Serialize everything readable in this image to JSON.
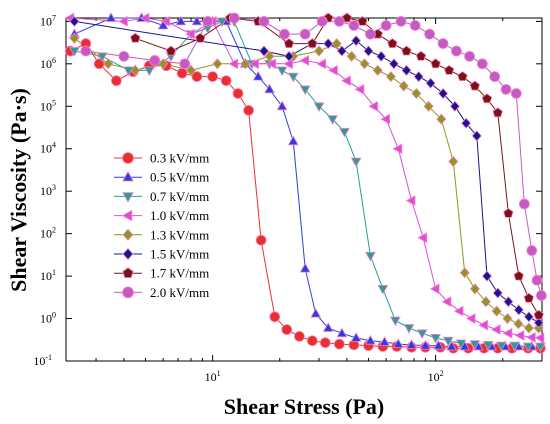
{
  "chart_data": {
    "type": "scatter",
    "title": "",
    "xlabel": "Shear Stress (Pa)",
    "ylabel": "Shear Viscosity (Pa·s)",
    "xscale": "log",
    "yscale": "log",
    "xlim": [
      2.2,
      300
    ],
    "ylim": [
      0.1,
      12000000
    ],
    "x_ticks": [
      {
        "value": 10,
        "base": "10",
        "exp": "1"
      },
      {
        "value": 100,
        "base": "10",
        "exp": "2"
      }
    ],
    "y_ticks": [
      {
        "value": 0.1,
        "base": "10",
        "exp": "-1"
      },
      {
        "value": 1,
        "base": "10",
        "exp": "0"
      },
      {
        "value": 10,
        "base": "10",
        "exp": "1"
      },
      {
        "value": 100,
        "base": "10",
        "exp": "2"
      },
      {
        "value": 1000,
        "base": "10",
        "exp": "3"
      },
      {
        "value": 10000,
        "base": "10",
        "exp": "4"
      },
      {
        "value": 100000,
        "base": "10",
        "exp": "5"
      },
      {
        "value": 1000000,
        "base": "10",
        "exp": "6"
      },
      {
        "value": 10000000,
        "base": "10",
        "exp": "7"
      }
    ],
    "grid": false,
    "legend_position": "center-left",
    "series": [
      {
        "name": "0.3 kV/mm",
        "color": "#e8312b",
        "marker": "circle",
        "points": [
          [
            2.3,
            2000000.0
          ],
          [
            2.7,
            3000000.0
          ],
          [
            3.1,
            1000000.0
          ],
          [
            3.7,
            400000.0
          ],
          [
            4.4,
            650000.0
          ],
          [
            5.2,
            900000.0
          ],
          [
            6.2,
            900000.0
          ],
          [
            7.3,
            600000.0
          ],
          [
            8.5,
            500000.0
          ],
          [
            10,
            500000.0
          ],
          [
            11.5,
            400000.0
          ],
          [
            13,
            200000.0
          ],
          [
            14.5,
            80000.0
          ],
          [
            16.5,
            70
          ],
          [
            19,
            1.1
          ],
          [
            21.5,
            0.55
          ],
          [
            24.5,
            0.38
          ],
          [
            28,
            0.3
          ],
          [
            32,
            0.27
          ],
          [
            37,
            0.25
          ],
          [
            43,
            0.24
          ],
          [
            50,
            0.23
          ],
          [
            58,
            0.22
          ],
          [
            67,
            0.22
          ],
          [
            78,
            0.21
          ],
          [
            90,
            0.21
          ],
          [
            105,
            0.21
          ],
          [
            120,
            0.2
          ],
          [
            140,
            0.2
          ],
          [
            165,
            0.2
          ],
          [
            190,
            0.2
          ],
          [
            220,
            0.2
          ],
          [
            260,
            0.2
          ],
          [
            295,
            0.2
          ]
        ]
      },
      {
        "name": "0.5 kV/mm",
        "color": "#2a3fe0",
        "marker": "triangle-up",
        "points": [
          [
            2.4,
            5000000.0
          ],
          [
            3.5,
            12000000.0
          ],
          [
            4.8,
            14000000.0
          ],
          [
            6.0,
            8000000.0
          ],
          [
            7.2,
            10000000.0
          ],
          [
            8.5,
            10000000.0
          ],
          [
            10,
            10000000.0
          ],
          [
            11.5,
            10000000.0
          ],
          [
            14,
            1000000.0
          ],
          [
            16,
            500000.0
          ],
          [
            18,
            250000.0
          ],
          [
            20.5,
            100000.0
          ],
          [
            23,
            15000.0
          ],
          [
            26,
            15
          ],
          [
            29,
            1.3
          ],
          [
            33,
            0.6
          ],
          [
            38,
            0.45
          ],
          [
            44,
            0.35
          ],
          [
            51,
            0.3
          ],
          [
            59,
            0.28
          ],
          [
            68,
            0.25
          ],
          [
            78,
            0.24
          ],
          [
            90,
            0.23
          ],
          [
            103,
            0.23
          ],
          [
            118,
            0.22
          ],
          [
            135,
            0.22
          ],
          [
            155,
            0.22
          ],
          [
            178,
            0.22
          ],
          [
            205,
            0.22
          ],
          [
            235,
            0.22
          ],
          [
            270,
            0.22
          ]
        ]
      },
      {
        "name": "0.7 kV/mm",
        "color": "#2a9e96",
        "marker": "triangle-down",
        "points": [
          [
            2.4,
            2000000.0
          ],
          [
            3.2,
            1500000.0
          ],
          [
            4.2,
            700000.0
          ],
          [
            5.2,
            700000.0
          ],
          [
            6.5,
            1500000.0
          ],
          [
            8,
            5000000.0
          ],
          [
            9.5,
            7000000.0
          ],
          [
            11,
            10000000.0
          ],
          [
            12.5,
            10000000.0
          ],
          [
            15,
            1000000.0
          ],
          [
            18,
            1000000.0
          ],
          [
            20.5,
            700000.0
          ],
          [
            23,
            500000.0
          ],
          [
            26,
            250000.0
          ],
          [
            30,
            100000.0
          ],
          [
            34.5,
            50000.0
          ],
          [
            39,
            25000.0
          ],
          [
            44,
            5000.0
          ],
          [
            51,
            30
          ],
          [
            58,
            5
          ],
          [
            66,
            0.9
          ],
          [
            76,
            0.6
          ],
          [
            87,
            0.45
          ],
          [
            100,
            0.35
          ],
          [
            114,
            0.3
          ],
          [
            130,
            0.26
          ],
          [
            150,
            0.25
          ],
          [
            172,
            0.24
          ],
          [
            197,
            0.23
          ],
          [
            226,
            0.23
          ],
          [
            260,
            0.22
          ],
          [
            295,
            0.22
          ]
        ]
      },
      {
        "name": "1.0 kV/mm",
        "color": "#d94fd6",
        "marker": "triangle-left",
        "points": [
          [
            2.3,
            18000000.0
          ],
          [
            4.0,
            10000000.0
          ],
          [
            5.0,
            15000000.0
          ],
          [
            6.2,
            10000000.0
          ],
          [
            8.0,
            5000000.0
          ],
          [
            10,
            10000000.0
          ],
          [
            12.5,
            1000000.0
          ],
          [
            15.5,
            1000000.0
          ],
          [
            18.5,
            1000000.0
          ],
          [
            22,
            1000000.0
          ],
          [
            26,
            1200000.0
          ],
          [
            31,
            1000000.0
          ],
          [
            35,
            700000.0
          ],
          [
            40,
            400000.0
          ],
          [
            46,
            250000.0
          ],
          [
            53,
            100000.0
          ],
          [
            60,
            50000.0
          ],
          [
            68,
            10000.0
          ],
          [
            78,
            600
          ],
          [
            88,
            80
          ],
          [
            100,
            5
          ],
          [
            113,
            2.5
          ],
          [
            128,
            1.5
          ],
          [
            145,
            1.0
          ],
          [
            165,
            0.7
          ],
          [
            188,
            0.55
          ],
          [
            212,
            0.45
          ],
          [
            240,
            0.4
          ],
          [
            270,
            0.36
          ],
          [
            295,
            0.35
          ]
        ]
      },
      {
        "name": "1.3 kV/mm",
        "color": "#8c9a1a",
        "marker": "diamond",
        "points": [
          [
            2.4,
            4000000.0
          ],
          [
            3.4,
            1000000.0
          ],
          [
            4.5,
            700000.0
          ],
          [
            6.0,
            1000000.0
          ],
          [
            8.0,
            700000.0
          ],
          [
            10.5,
            1000000.0
          ],
          [
            14,
            1000000.0
          ],
          [
            18,
            1500000.0
          ],
          [
            23,
            1500000.0
          ],
          [
            30,
            2000000.0
          ],
          [
            36,
            3000000.0
          ],
          [
            42,
            1500000.0
          ],
          [
            48,
            1000000.0
          ],
          [
            55,
            700000.0
          ],
          [
            63,
            500000.0
          ],
          [
            72,
            300000.0
          ],
          [
            82,
            200000.0
          ],
          [
            93,
            100000.0
          ],
          [
            106,
            50000.0
          ],
          [
            120,
            5000.0
          ],
          [
            135,
            12
          ],
          [
            150,
            5
          ],
          [
            168,
            2.5
          ],
          [
            188,
            1.5
          ],
          [
            210,
            1.0
          ],
          [
            235,
            0.75
          ],
          [
            262,
            0.6
          ],
          [
            290,
            0.6
          ]
        ]
      },
      {
        "name": "1.5 kV/mm",
        "color": "#16178c",
        "marker": "diamond",
        "points": [
          [
            2.4,
            10000000.0
          ],
          [
            17,
            2000000.0
          ],
          [
            22,
            1500000.0
          ],
          [
            28,
            3000000.0
          ],
          [
            33,
            3000000.0
          ],
          [
            38,
            2000000.0
          ],
          [
            44,
            3500000.0
          ],
          [
            50,
            2000000.0
          ],
          [
            57,
            1500000.0
          ],
          [
            65,
            1000000.0
          ],
          [
            74,
            700000.0
          ],
          [
            84,
            500000.0
          ],
          [
            95,
            350000.0
          ],
          [
            108,
            200000.0
          ],
          [
            122,
            100000.0
          ],
          [
            137,
            40000.0
          ],
          [
            153,
            20000.0
          ],
          [
            170,
            10
          ],
          [
            190,
            4
          ],
          [
            212,
            2.5
          ],
          [
            236,
            1.6
          ],
          [
            262,
            1.1
          ],
          [
            290,
            0.8
          ]
        ]
      },
      {
        "name": "1.7 kV/mm",
        "color": "#7a1414",
        "marker": "pentagon",
        "points": [
          [
            4.5,
            4000000.0
          ],
          [
            6.5,
            2000000.0
          ],
          [
            8.8,
            4000000.0
          ],
          [
            12,
            15000000.0
          ],
          [
            16,
            10000000.0
          ],
          [
            22,
            3000000.0
          ],
          [
            28,
            3000000.0
          ],
          [
            33,
            15000000.0
          ],
          [
            40,
            15000000.0
          ],
          [
            47,
            10000000.0
          ],
          [
            55,
            5000000.0
          ],
          [
            64,
            3000000.0
          ],
          [
            74,
            2000000.0
          ],
          [
            86,
            1500000.0
          ],
          [
            100,
            1000000.0
          ],
          [
            115,
            700000.0
          ],
          [
            132,
            500000.0
          ],
          [
            150,
            300000.0
          ],
          [
            170,
            150000.0
          ],
          [
            190,
            70000.0
          ],
          [
            212,
            300
          ],
          [
            236,
            10
          ],
          [
            262,
            3
          ],
          [
            290,
            1.2
          ]
        ]
      },
      {
        "name": "2.0 kV/mm",
        "color": "#c45bc4",
        "marker": "circle",
        "points": [
          [
            2.7,
            2000000.0
          ],
          [
            4.0,
            1500000.0
          ],
          [
            5.5,
            1200000.0
          ],
          [
            7.5,
            1000000.0
          ],
          [
            9.5,
            10000000.0
          ],
          [
            12.5,
            16000000.0
          ],
          [
            17,
            10000000.0
          ],
          [
            21,
            5000000.0
          ],
          [
            26,
            5000000.0
          ],
          [
            31,
            10000000.0
          ],
          [
            37,
            10000000.0
          ],
          [
            43,
            8000000.0
          ],
          [
            51,
            5000000.0
          ],
          [
            60,
            8000000.0
          ],
          [
            70,
            10000000.0
          ],
          [
            81,
            8000000.0
          ],
          [
            94,
            5000000.0
          ],
          [
            108,
            3000000.0
          ],
          [
            124,
            2000000.0
          ],
          [
            142,
            1500000.0
          ],
          [
            162,
            1000000.0
          ],
          [
            184,
            500000.0
          ],
          [
            207,
            250000.0
          ],
          [
            230,
            200000.0
          ],
          [
            250,
            500
          ],
          [
            270,
            40
          ],
          [
            285,
            8
          ],
          [
            298,
            3.5
          ]
        ]
      }
    ]
  }
}
